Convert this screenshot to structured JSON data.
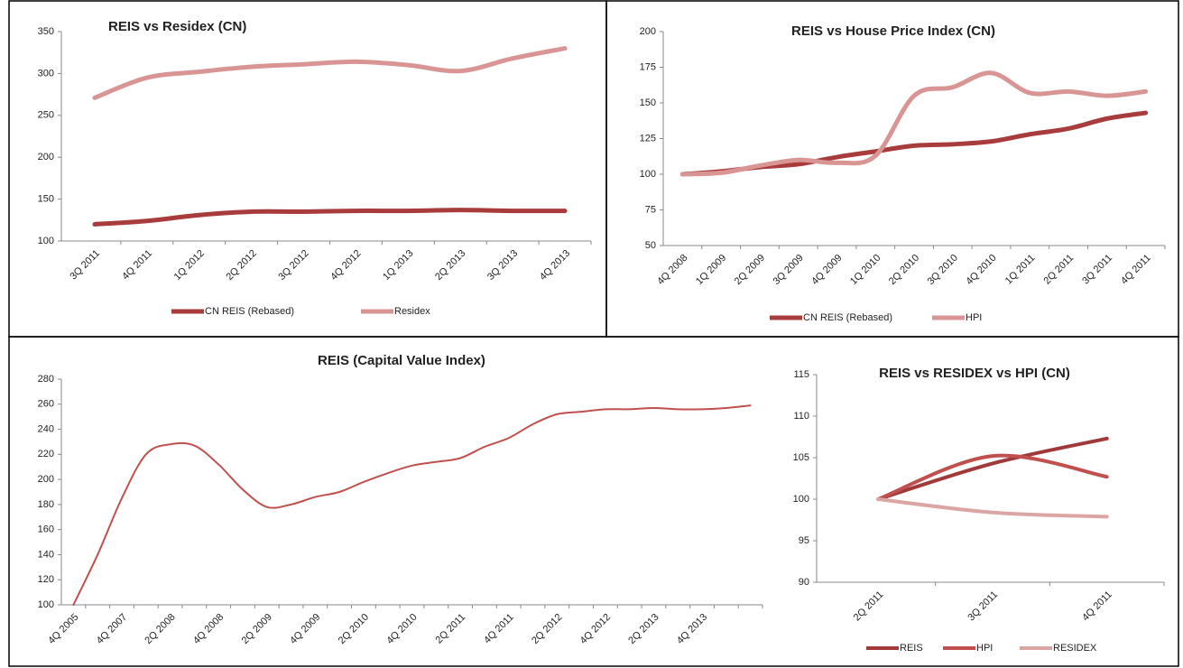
{
  "chart_data": [
    {
      "type": "line",
      "title": "REIS vs Residex (CN)",
      "categories": [
        "3Q 2011",
        "4Q 2011",
        "1Q 2012",
        "2Q 2012",
        "3Q 2012",
        "4Q 2012",
        "1Q 2013",
        "2Q 2013",
        "3Q 2013",
        "4Q 2013"
      ],
      "series": [
        {
          "name": "CN REIS (Rebased)",
          "color": "#a83b3b",
          "values": [
            120,
            124,
            131,
            135,
            135,
            136,
            136,
            137,
            136,
            136
          ]
        },
        {
          "name": "Residex",
          "color": "#d99594",
          "values": [
            271,
            295,
            302,
            308,
            311,
            314,
            310,
            303,
            318,
            330
          ]
        }
      ],
      "ylim": [
        100,
        350
      ],
      "yticks": [
        100,
        150,
        200,
        250,
        300,
        350
      ]
    },
    {
      "type": "line",
      "title": "REIS vs House Price Index (CN)",
      "categories": [
        "4Q 2008",
        "1Q 2009",
        "2Q 2009",
        "3Q 2009",
        "4Q 2009",
        "1Q 2010",
        "2Q 2010",
        "3Q 2010",
        "4Q 2010",
        "1Q 2011",
        "2Q 2011",
        "3Q 2011",
        "4Q 2011"
      ],
      "series": [
        {
          "name": "CN REIS (Rebased)",
          "color": "#a83b3b",
          "values": [
            100,
            102,
            105,
            107,
            112,
            116,
            120,
            121,
            123,
            128,
            132,
            139,
            143
          ]
        },
        {
          "name": "HPI",
          "color": "#d99594",
          "values": [
            100,
            101,
            106,
            110,
            108,
            113,
            155,
            161,
            171,
            157,
            158,
            155,
            158
          ]
        }
      ],
      "ylim": [
        50,
        200
      ],
      "yticks": [
        50,
        75,
        100,
        125,
        150,
        175,
        200
      ]
    },
    {
      "type": "line",
      "title": "REIS (Capital Value Index)",
      "categories": [
        "4Q 2005",
        null,
        "4Q 2007",
        null,
        "2Q 2008",
        null,
        "4Q 2008",
        null,
        "2Q 2009",
        null,
        "4Q 2009",
        null,
        "2Q 2010",
        null,
        "4Q 2010",
        null,
        "2Q 2011",
        null,
        "4Q 2011",
        null,
        "2Q 2012",
        null,
        "4Q 2012",
        null,
        "2Q 2013",
        null,
        "4Q 2013",
        null,
        null
      ],
      "series": [
        {
          "color": "#c0504d",
          "values": [
            100,
            140,
            185,
            220,
            228,
            227,
            212,
            192,
            178,
            180,
            186,
            190,
            198,
            205,
            211,
            214,
            217,
            226,
            233,
            244,
            252,
            254,
            256,
            256,
            257,
            256,
            256,
            257,
            259
          ]
        }
      ],
      "ylim": [
        100,
        280
      ],
      "yticks": [
        100,
        120,
        140,
        160,
        180,
        200,
        220,
        240,
        260,
        280
      ]
    },
    {
      "type": "line",
      "title": "REIS vs RESIDEX vs HPI (CN)",
      "categories": [
        "2Q 2011",
        "3Q 2011",
        "4Q 2011"
      ],
      "series": [
        {
          "name": "REIS",
          "color": "#a0393a",
          "values": [
            100,
            104.3,
            107.3
          ]
        },
        {
          "name": "HPI",
          "color": "#c0504d",
          "values": [
            100,
            105.2,
            102.7
          ]
        },
        {
          "name": "RESIDEX",
          "color": "#dba5a4",
          "values": [
            100,
            98.4,
            97.9
          ]
        }
      ],
      "ylim": [
        90,
        115
      ],
      "yticks": [
        90,
        95,
        100,
        105,
        110,
        115
      ]
    }
  ]
}
